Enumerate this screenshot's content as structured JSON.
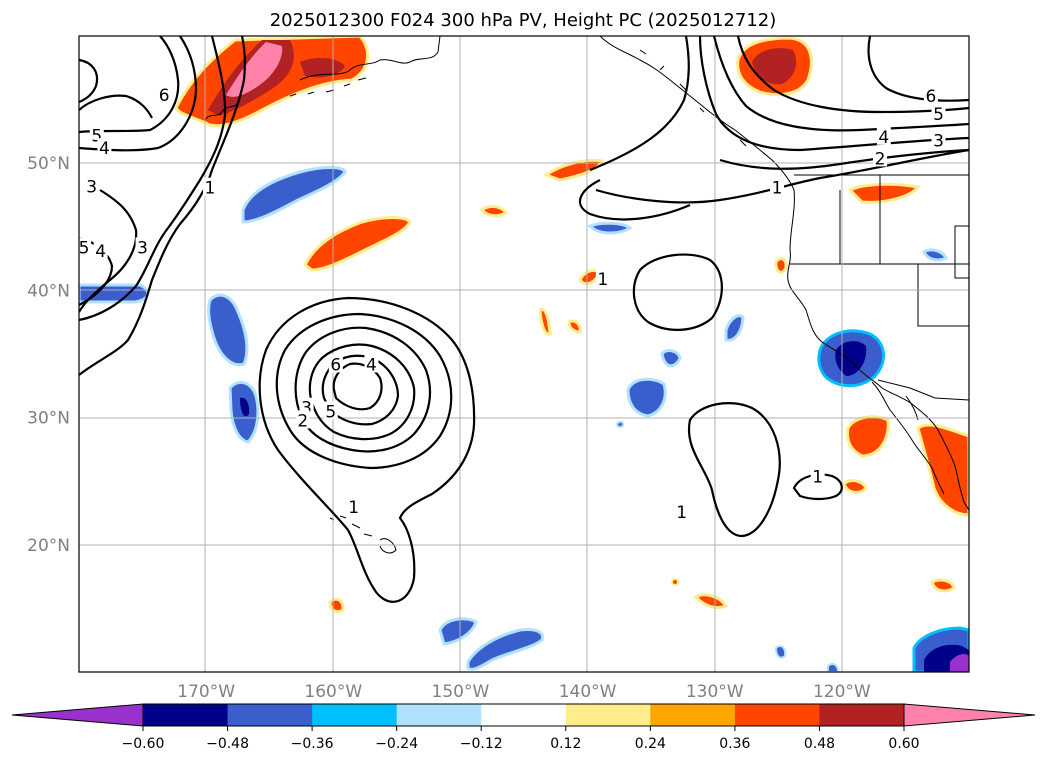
{
  "title": "2025012300 F024 300 hPa PV, Height PC (2025012712)",
  "map": {
    "lon_range": [
      -180,
      -110
    ],
    "lat_range": [
      10,
      60
    ],
    "lon_ticks": [
      {
        "value": -170,
        "label": "170°W"
      },
      {
        "value": -160,
        "label": "160°W"
      },
      {
        "value": -150,
        "label": "150°W"
      },
      {
        "value": -140,
        "label": "140°W"
      },
      {
        "value": -130,
        "label": "130°W"
      },
      {
        "value": -120,
        "label": "120°W"
      }
    ],
    "lat_ticks": [
      {
        "value": 50,
        "label": "50°N"
      },
      {
        "value": 40,
        "label": "40°N"
      },
      {
        "value": 30,
        "label": "30°N"
      },
      {
        "value": 20,
        "label": "20°N"
      }
    ],
    "grid": true
  },
  "colorbar": {
    "levels": [
      "−0.60",
      "−0.48",
      "−0.36",
      "−0.24",
      "−0.12",
      "0.12",
      "0.24",
      "0.36",
      "0.48",
      "0.60"
    ],
    "colors": [
      "#9932cc",
      "#00008b",
      "#3a5fcd",
      "#00bfff",
      "#b0e2ff",
      "#ffffff",
      "#ffec8b",
      "#ffa500",
      "#ff4500",
      "#b22222",
      "#ff82ab"
    ],
    "extend": "both"
  },
  "contour_labels": [
    {
      "text": "6",
      "lon": -173.3,
      "lat": 55.3
    },
    {
      "text": "5",
      "lon": -178.6,
      "lat": 52.1
    },
    {
      "text": "4",
      "lon": -178.0,
      "lat": 51.1
    },
    {
      "text": "3",
      "lon": -179.0,
      "lat": 48.1
    },
    {
      "text": "1",
      "lon": -169.7,
      "lat": 48.0
    },
    {
      "text": "5",
      "lon": -179.6,
      "lat": 43.3
    },
    {
      "text": "4",
      "lon": -178.3,
      "lat": 43.0
    },
    {
      "text": "3",
      "lon": -175.0,
      "lat": 43.3
    },
    {
      "text": "6",
      "lon": -113.0,
      "lat": 55.2
    },
    {
      "text": "5",
      "lon": -112.4,
      "lat": 53.8
    },
    {
      "text": "4",
      "lon": -116.7,
      "lat": 52.0
    },
    {
      "text": "3",
      "lon": -112.4,
      "lat": 51.7
    },
    {
      "text": "2",
      "lon": -117.0,
      "lat": 50.3
    },
    {
      "text": "1",
      "lon": -125.1,
      "lat": 48.0
    },
    {
      "text": "1",
      "lon": -138.8,
      "lat": 40.8
    },
    {
      "text": "6",
      "lon": -159.8,
      "lat": 34.1
    },
    {
      "text": "4",
      "lon": -157.0,
      "lat": 34.1
    },
    {
      "text": "5",
      "lon": -160.2,
      "lat": 30.4
    },
    {
      "text": "3",
      "lon": -162.1,
      "lat": 30.7
    },
    {
      "text": "2",
      "lon": -162.4,
      "lat": 29.7
    },
    {
      "text": "1",
      "lon": -158.4,
      "lat": 22.9
    },
    {
      "text": "1",
      "lon": -121.9,
      "lat": 25.3
    },
    {
      "text": "1",
      "lon": -132.6,
      "lat": 22.5
    }
  ]
}
